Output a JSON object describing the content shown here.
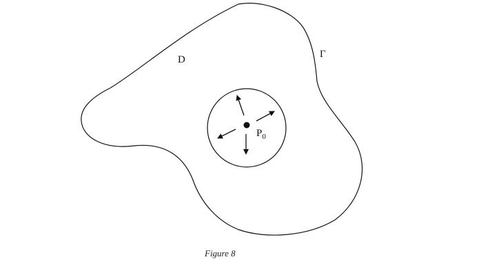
{
  "figure": {
    "region_label": "D",
    "boundary_label": "Γ",
    "point_label": "P",
    "point_subscript": "0",
    "caption": "Figure 8"
  },
  "colors": {
    "stroke": "#111111",
    "background": "#ffffff"
  }
}
